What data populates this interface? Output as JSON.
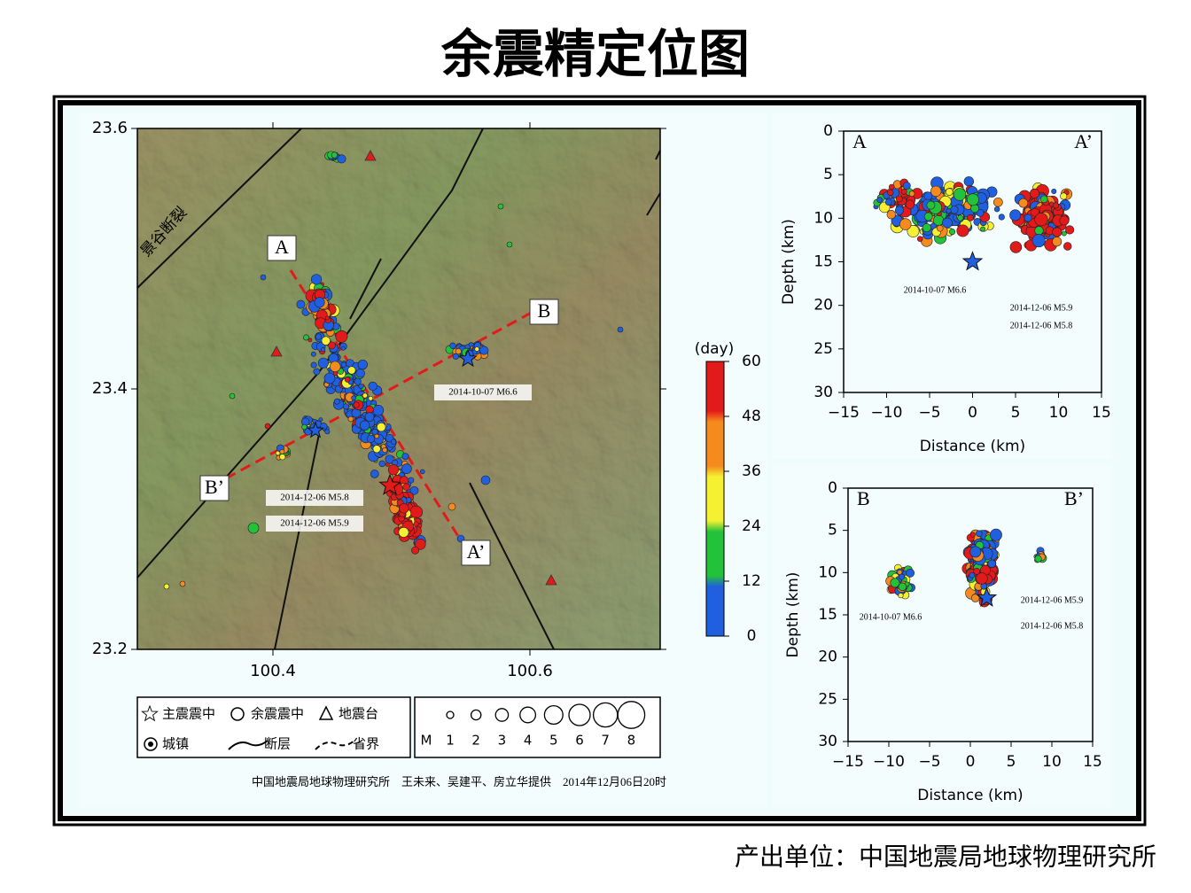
{
  "title": "余震精定位图",
  "map": {
    "fault_name": "景谷断裂",
    "profile_labels": [
      "A",
      "A’",
      "B",
      "B’"
    ],
    "event_labels": [
      "2014-10-07 M6.6",
      "2014-12-06 M5.8",
      "2014-12-06 M5.9"
    ],
    "yticks": [
      "23.6",
      "23.4",
      "23.2"
    ],
    "xticks": [
      "100.4",
      "100.6"
    ]
  },
  "colorbar": {
    "unit": "(day)",
    "ticks": [
      "60",
      "48",
      "36",
      "24",
      "12",
      "0"
    ]
  },
  "legend": {
    "items": [
      "主震震中",
      "余震震中",
      "地震台",
      "城镇",
      "断层",
      "省界"
    ],
    "magnitude_label": "M",
    "magnitudes": [
      "1",
      "2",
      "3",
      "4",
      "5",
      "6",
      "7",
      "8"
    ]
  },
  "credit": "中国地震局地球物理研究所　王未来、吴建平、房立华提供　2014年12月06日20时",
  "sections": [
    {
      "left": "A",
      "right": "A’",
      "ylabel": "Depth (km)",
      "xlabel": "Distance (km)",
      "yticks": [
        "0",
        "5",
        "10",
        "15",
        "20",
        "25",
        "30"
      ],
      "xticks": [
        "−15",
        "−10",
        "−5",
        "0",
        "5",
        "10",
        "15"
      ],
      "event_labels": [
        "2014-10-07 M6.6",
        "2014-12-06 M5.9",
        "2014-12-06 M5.8"
      ]
    },
    {
      "left": "B",
      "right": "B’",
      "ylabel": "Depth (km)",
      "xlabel": "Distance (km)",
      "yticks": [
        "0",
        "5",
        "10",
        "15",
        "20",
        "25",
        "30"
      ],
      "xticks": [
        "−15",
        "−10",
        "−5",
        "0",
        "5",
        "10",
        "15"
      ],
      "event_labels": [
        "2014-10-07 M6.6",
        "2014-12-06 M5.9",
        "2014-12-06 M5.8"
      ]
    }
  ],
  "footer": "产出单位：中国地震局地球物理研究所"
}
